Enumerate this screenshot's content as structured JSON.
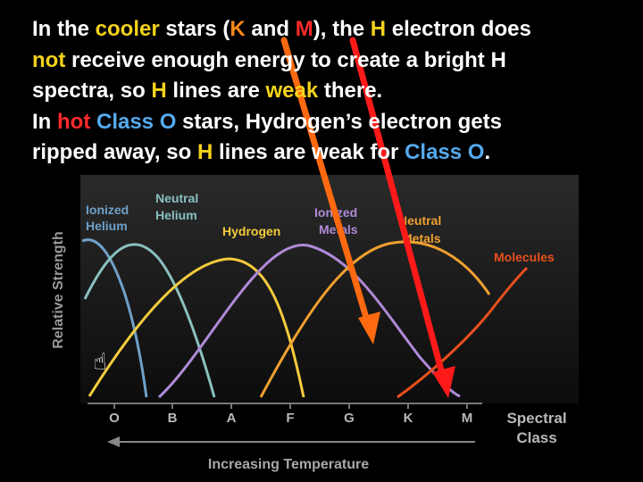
{
  "caption": {
    "line1": {
      "p1": "In the ",
      "p2": "cooler",
      "p3": " stars (",
      "p4": "K",
      "p5": " and ",
      "p6": "M",
      "p7": "), the ",
      "p8": "H",
      "p9": " electron does"
    },
    "line2": {
      "p1": "not",
      "p2": " receive enough energy to create a bright H"
    },
    "line3": {
      "p1": "spectra, so ",
      "p2": "H",
      "p3": " lines are ",
      "p4": "weak",
      "p5": " there."
    },
    "line4": {
      "p1": "In ",
      "p2": "hot",
      "p3": " ",
      "p4": "Class O",
      "p5": " stars, Hydrogen’s electron gets"
    },
    "line5": {
      "p1": "ripped away, so ",
      "p2": "H",
      "p3": " lines are weak for ",
      "p4": "Class O",
      "p5": "."
    }
  },
  "diagram": {
    "y_axis_label": "Relative Strength",
    "x_axis_label": "Increasing Temperature",
    "spectral_label_1": "Spectral",
    "spectral_label_2": "Class",
    "classes": [
      "O",
      "B",
      "A",
      "F",
      "G",
      "K",
      "M"
    ],
    "curves": [
      {
        "id": "ionized-helium",
        "label_1": "Ionized",
        "label_2": "Helium",
        "color": "#6fa0c8"
      },
      {
        "id": "neutral-helium",
        "label_1": "Neutral",
        "label_2": "Helium",
        "color": "#8ac0c0"
      },
      {
        "id": "hydrogen",
        "label_1": "Hydrogen",
        "color": "#f4cc3c"
      },
      {
        "id": "ionized-metals",
        "label_1": "Ionized",
        "label_2": "Metals",
        "color": "#b08ad8"
      },
      {
        "id": "neutral-metals",
        "label_1": "Neutral",
        "label_2": "Metals",
        "color": "#f0a030"
      },
      {
        "id": "molecules",
        "label_1": "Molecules",
        "color": "#e8501c"
      }
    ],
    "arrow_colors": {
      "orange": "#ff6a10",
      "red": "#ff1a1a"
    }
  }
}
